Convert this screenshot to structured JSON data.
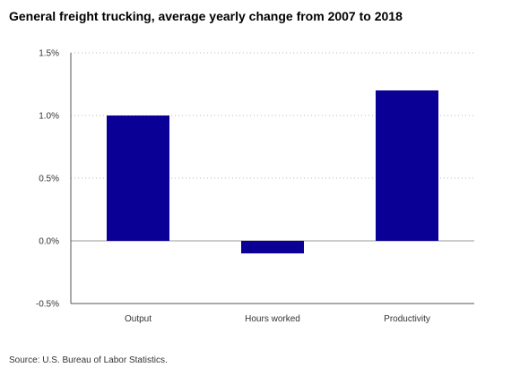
{
  "chart_data": {
    "type": "bar",
    "title": "General freight trucking, average yearly change from 2007 to 2018",
    "categories": [
      "Output",
      "Hours worked",
      "Productivity"
    ],
    "series": [
      {
        "values": [
          1.0,
          -0.1,
          1.2
        ]
      }
    ],
    "xlabel": "",
    "ylabel": "",
    "ylim": [
      -0.5,
      1.5
    ],
    "yticks": [
      "-0.5%",
      "0.0%",
      "0.5%",
      "1.0%",
      "1.5%"
    ],
    "grid": true,
    "bar_color": "#0a0096",
    "source": "Source: U.S. Bureau of Labor Statistics."
  }
}
